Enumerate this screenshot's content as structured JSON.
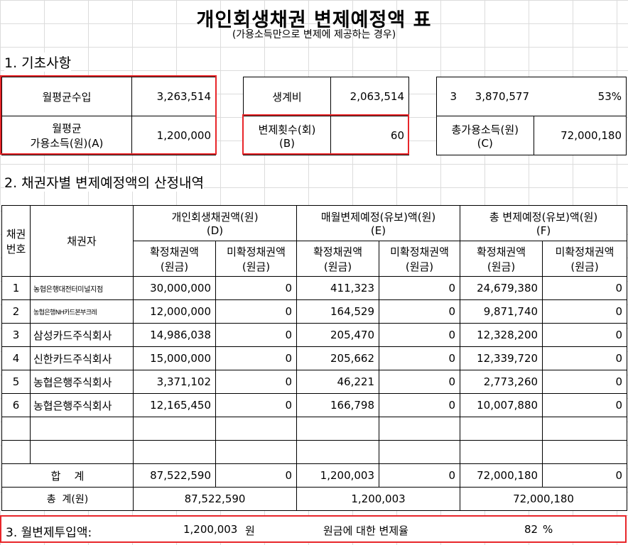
{
  "header": {
    "title": "개인회생채권 변제예정액 표",
    "subtitle": "(가용소득만으로 변제에 제공하는 경우)"
  },
  "section1": {
    "heading": "1. 기초사항",
    "monthly_income_label": "월평균수입",
    "monthly_income_value": "3,263,514",
    "disposable_label_line1": "월평균",
    "disposable_label_line2": "가용소득(원)(A)",
    "disposable_value": "1,200,000",
    "living_cost_label": "생계비",
    "living_cost_value": "2,063,514",
    "repay_count_label_line1": "변제횟수(회)",
    "repay_count_label_line2": "(B)",
    "repay_count_value": "60",
    "right_a": "3",
    "right_b": "3,870,577",
    "right_c": "53%",
    "total_disposable_label_line1": "총가용소득(원)",
    "total_disposable_label_line2": "(C)",
    "total_disposable_value": "72,000,180"
  },
  "section2": {
    "heading": "2. 채권자별 변제예정액의 산정내역",
    "col_no_line1": "채권",
    "col_no_line2": "번호",
    "col_creditor": "채권자",
    "group_d_line1": "개인회생채권액(원)",
    "group_d_line2": "(D)",
    "group_e_line1": "매월변제예정(유보)액(원)",
    "group_e_line2": "(E)",
    "group_f_line1": "총 변제예정(유보)액(원)",
    "group_f_line2": "(F)",
    "sub_confirmed_line1": "확정채권액",
    "sub_unconfirmed_line1": "미확정채권액",
    "sub_line2": "(원금)",
    "rows": [
      {
        "no": "1",
        "creditor": "농협은행대전터미널지점",
        "d1": "30,000,000",
        "d2": "0",
        "e1": "411,323",
        "e2": "0",
        "f1": "24,679,380",
        "f2": "0"
      },
      {
        "no": "2",
        "creditor": "농협은행NH카드본부크레",
        "d1": "12,000,000",
        "d2": "0",
        "e1": "164,529",
        "e2": "0",
        "f1": "9,871,740",
        "f2": "0"
      },
      {
        "no": "3",
        "creditor": "삼성카드주식회사",
        "d1": "14,986,038",
        "d2": "0",
        "e1": "205,470",
        "e2": "0",
        "f1": "12,328,200",
        "f2": "0"
      },
      {
        "no": "4",
        "creditor": "신한카드주식회사",
        "d1": "15,000,000",
        "d2": "0",
        "e1": "205,662",
        "e2": "0",
        "f1": "12,339,720",
        "f2": "0"
      },
      {
        "no": "5",
        "creditor": "농협은행주식회사",
        "d1": "3,371,102",
        "d2": "0",
        "e1": "46,221",
        "e2": "0",
        "f1": "2,773,260",
        "f2": "0"
      },
      {
        "no": "6",
        "creditor": "농협은행주식회사",
        "d1": "12,165,450",
        "d2": "0",
        "e1": "166,798",
        "e2": "0",
        "f1": "10,007,880",
        "f2": "0"
      }
    ],
    "sum_label": "합    계",
    "sum": {
      "d1": "87,522,590",
      "d2": "0",
      "e1": "1,200,003",
      "e2": "0",
      "f1": "72,000,180",
      "f2": "0"
    },
    "total_label": "총  계(원)",
    "total": {
      "d": "87,522,590",
      "e": "1,200,003",
      "f": "72,000,180"
    }
  },
  "section3": {
    "heading": "3. 월변제투입액:",
    "monthly_amount": "1,200,003",
    "unit_won": "원",
    "rate_label": "원금에 대한 변제율",
    "rate_value": "82",
    "rate_unit": "%"
  },
  "colors": {
    "highlight": "#e8262a",
    "grid": "#d4d4d4"
  }
}
